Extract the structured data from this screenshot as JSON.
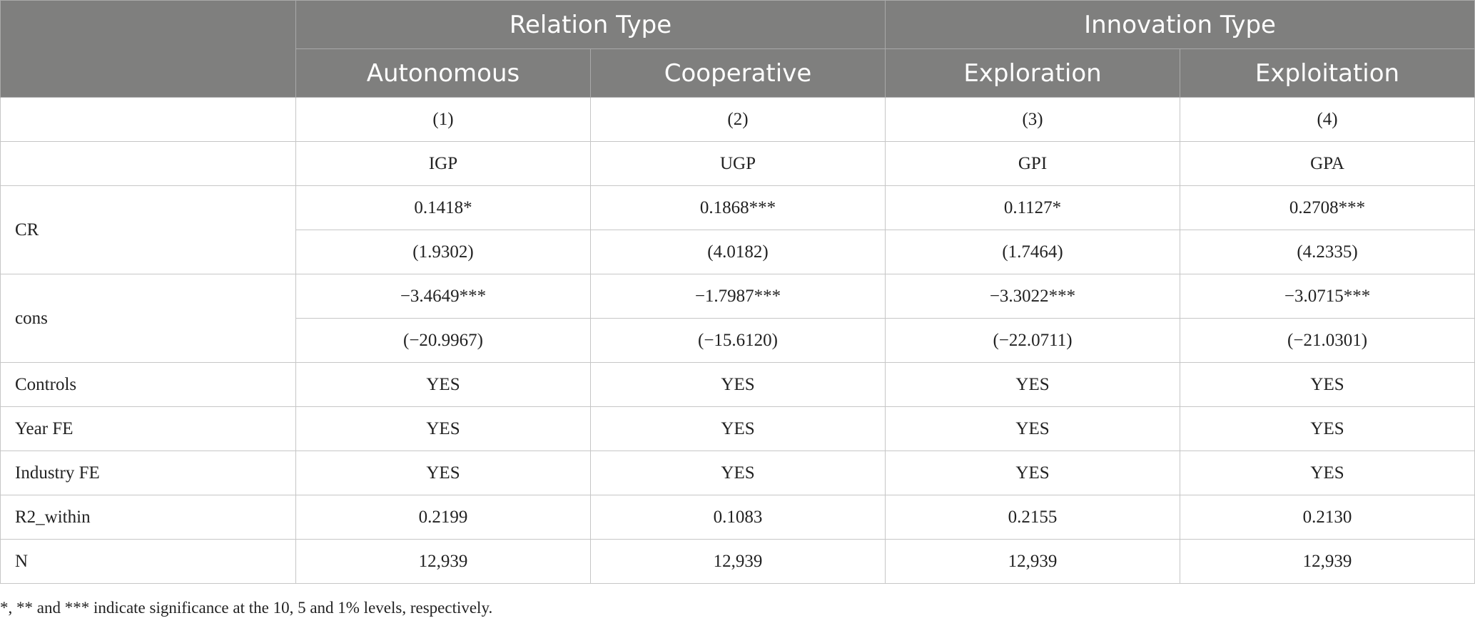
{
  "table": {
    "group_headers": [
      "Relation Type",
      "Innovation Type"
    ],
    "sub_headers": [
      "Autonomous",
      "Cooperative",
      "Exploration",
      "Exploitation"
    ],
    "column_numbers": [
      "(1)",
      "(2)",
      "(3)",
      "(4)"
    ],
    "dependent_vars": [
      "IGP",
      "UGP",
      "GPI",
      "GPA"
    ],
    "cr": {
      "label": "CR",
      "coef": [
        "0.1418*",
        "0.1868***",
        "0.1127*",
        "0.2708***"
      ],
      "tstat": [
        "(1.9302)",
        "(4.0182)",
        "(1.7464)",
        "(4.2335)"
      ]
    },
    "cons": {
      "label": "cons",
      "coef": [
        "−3.4649***",
        "−1.7987***",
        "−3.3022***",
        "−3.0715***"
      ],
      "tstat": [
        "(−20.9967)",
        "(−15.6120)",
        "(−22.0711)",
        "(−21.0301)"
      ]
    },
    "rows": [
      {
        "label": "Controls",
        "values": [
          "YES",
          "YES",
          "YES",
          "YES"
        ]
      },
      {
        "label": "Year FE",
        "values": [
          "YES",
          "YES",
          "YES",
          "YES"
        ]
      },
      {
        "label": "Industry FE",
        "values": [
          "YES",
          "YES",
          "YES",
          "YES"
        ]
      },
      {
        "label": "R2_within",
        "values": [
          "0.2199",
          "0.1083",
          "0.2155",
          "0.2130"
        ]
      },
      {
        "label": "N",
        "values": [
          "12,939",
          "12,939",
          "12,939",
          "12,939"
        ]
      }
    ]
  },
  "footnote": "*, ** and *** indicate significance at the 10, 5 and 1% levels, respectively.",
  "colors": {
    "header_bg": "#7f7f7e",
    "header_text": "#ffffff",
    "border": "#c6c6c6"
  }
}
